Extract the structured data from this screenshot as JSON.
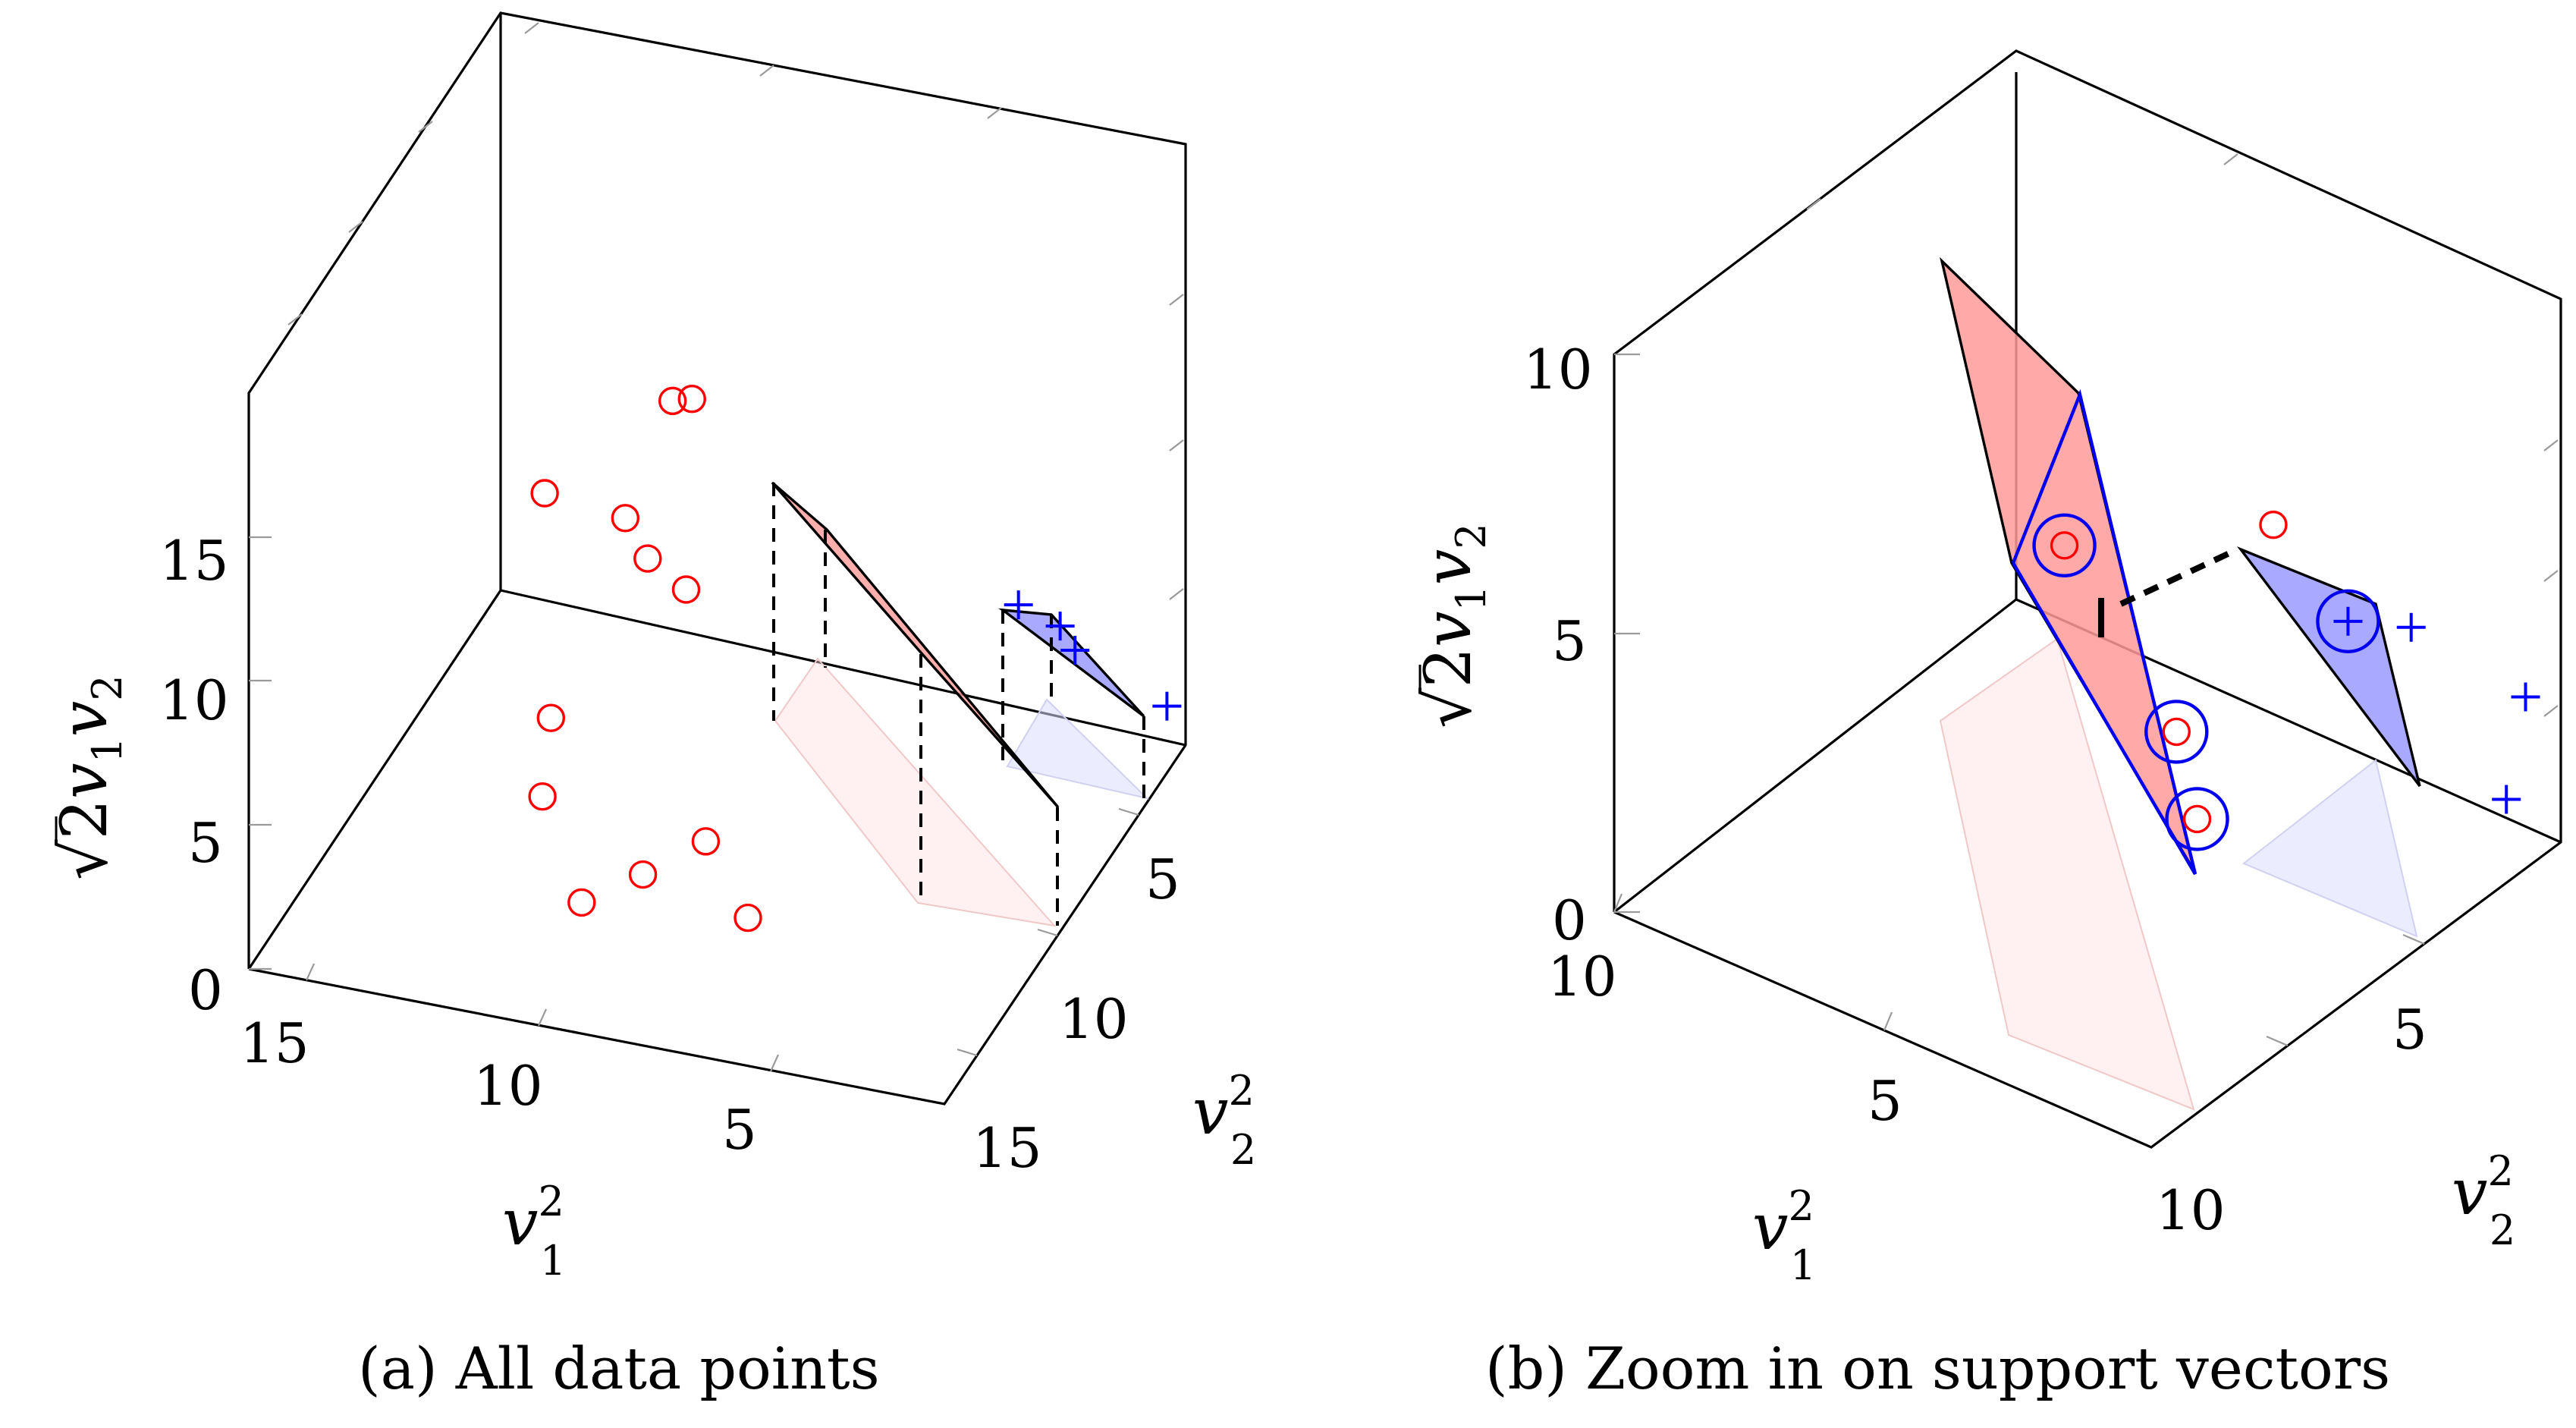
{
  "chart_data": [
    {
      "type": "scatter",
      "subtype": "3d",
      "caption": "(a) All data points",
      "xlabel": "v12",
      "ylabel": "v22",
      "zlabel": "√2v1v2",
      "xlim": [
        0,
        16
      ],
      "ylim": [
        0,
        16
      ],
      "zlim": [
        0,
        20
      ],
      "x_ticks": [
        "15",
        "10",
        "5"
      ],
      "y_ticks": [
        "5",
        "10",
        "15"
      ],
      "z_ticks": [
        "0",
        "5",
        "10",
        "15"
      ],
      "series": [
        {
          "marker": "circle",
          "color": "#ff0000",
          "points": [
            [
              3.72,
              5.7,
              5.0
            ],
            [
              2.9,
              4.5,
              5.0
            ],
            [
              1.6,
              3.5,
              5.0
            ],
            [
              4.0,
              2.5,
              7.5
            ],
            [
              8.5,
              4.3,
              4.0
            ],
            [
              10.4,
              4.8,
              3.0
            ],
            [
              10.0,
              7.0,
              0.7
            ],
            [
              9.0,
              8.1,
              1.4
            ],
            [
              10.9,
              5.9,
              0.1
            ],
            [
              10.4,
              9.6,
              0.4
            ],
            [
              0.5,
              4.2,
              8.4
            ],
            [
              0.9,
              4.8,
              9.0
            ]
          ]
        },
        {
          "marker": "plus",
          "color": "#0000ff",
          "points": [
            [
              1.1,
              12.5,
              4.6
            ],
            [
              0.9,
              13.4,
              4.0
            ],
            [
              0.5,
              13.6,
              2.9
            ],
            [
              0.1,
              15.6,
              1.3
            ]
          ]
        }
      ],
      "hull_red": [
        [
          1.1,
          11.0,
          3.0
        ],
        [
          1.6,
          10.8,
          3.2
        ],
        [
          10.9,
          5.9,
          0.1
        ],
        [
          10.4,
          4.8,
          3.0
        ]
      ],
      "hull_blue": [
        [
          0.5,
          13.6,
          2.9
        ],
        [
          1.1,
          12.5,
          4.6
        ],
        [
          0.9,
          13.4,
          4.0
        ]
      ]
    },
    {
      "type": "scatter",
      "subtype": "3d",
      "caption": "(b) Zoom in on support vectors",
      "xlabel": "v12",
      "ylabel": "v22",
      "zlabel": "√2v1v2",
      "xlim": [
        0,
        10
      ],
      "ylim": [
        0,
        10
      ],
      "zlim": [
        0,
        12
      ],
      "x_ticks": [
        "10",
        "5"
      ],
      "y_ticks": [
        "5",
        "10"
      ],
      "z_ticks": [
        "0",
        "5",
        "10"
      ],
      "series": [
        {
          "marker": "circle",
          "color": "#ff0000",
          "points": [
            [
              5.66,
              7.5,
              3.0
            ],
            [
              3.6,
              5.6,
              2.5
            ],
            [
              3.0,
              3.1,
              4.8
            ],
            [
              3.9,
              7.6,
              8.2
            ]
          ]
        },
        {
          "marker": "plus",
          "color": "#0000ff",
          "points": [
            [
              1.5,
              7.2,
              4.3
            ],
            [
              0.2,
              7.4,
              3.4
            ],
            [
              0.0,
              9.0,
              0.4
            ],
            [
              0.2,
              9.5,
              3.0
            ]
          ]
        }
      ],
      "support_vectors": [
        [
          5.66,
          7.5,
          3.0
        ],
        [
          3.6,
          5.6,
          2.5
        ],
        [
          3.0,
          3.1,
          4.8
        ],
        [
          1.5,
          7.2,
          4.3
        ]
      ]
    }
  ]
}
